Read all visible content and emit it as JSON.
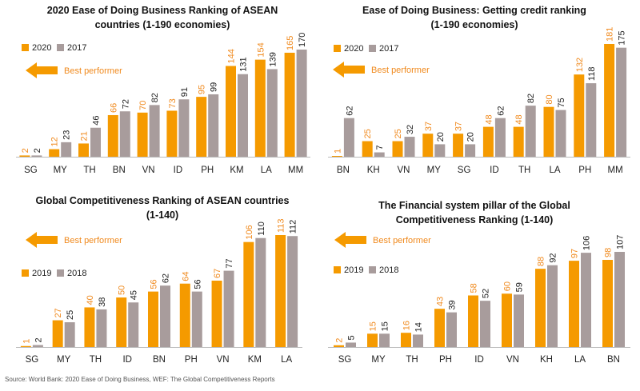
{
  "colors": {
    "primary": "#F59A00",
    "secondary": "#A89C9C",
    "label_primary": "#F08A1E",
    "axis": "#BBBBBB"
  },
  "best_performer_label": "Best performer",
  "source": "Source: World Bank: 2020 Ease of Doing Business, WEF: The Global Competitiveness Reports",
  "chart_data": [
    {
      "type": "bar",
      "title": [
        "2020 Ease of Doing Business Ranking of ASEAN",
        "countries (1-190 economies)"
      ],
      "categories": [
        "SG",
        "MY",
        "TH",
        "BN",
        "VN",
        "ID",
        "PH",
        "KM",
        "LA",
        "MM"
      ],
      "series": [
        {
          "name": "2020",
          "values": [
            2,
            12,
            21,
            66,
            70,
            73,
            95,
            144,
            154,
            165
          ]
        },
        {
          "name": "2017",
          "values": [
            2,
            23,
            46,
            72,
            82,
            91,
            99,
            131,
            139,
            170
          ]
        }
      ],
      "ylim": [
        0,
        170
      ],
      "legend": "top-left",
      "annotation": "Best performer"
    },
    {
      "type": "bar",
      "title": [
        "Ease of Doing Business: Getting credit ranking",
        "(1-190 economies)"
      ],
      "categories": [
        "BN",
        "KH",
        "VN",
        "MY",
        "SG",
        "ID",
        "TH",
        "LA",
        "PH",
        "MM"
      ],
      "series": [
        {
          "name": "2020",
          "values": [
            1,
            25,
            25,
            37,
            37,
            48,
            48,
            80,
            132,
            181
          ]
        },
        {
          "name": "2017",
          "values": [
            62,
            7,
            32,
            20,
            20,
            62,
            82,
            75,
            118,
            175
          ]
        }
      ],
      "ylim": [
        0,
        181
      ],
      "legend": "top-left",
      "annotation": "Best performer"
    },
    {
      "type": "bar",
      "title": [
        "Global Competitiveness Ranking of ASEAN countries",
        "(1-140)"
      ],
      "categories": [
        "SG",
        "MY",
        "TH",
        "ID",
        "BN",
        "PH",
        "VN",
        "KM",
        "LA"
      ],
      "series": [
        {
          "name": "2019",
          "values": [
            1,
            27,
            40,
            50,
            56,
            64,
            67,
            106,
            113
          ]
        },
        {
          "name": "2018",
          "values": [
            2,
            25,
            38,
            45,
            62,
            56,
            77,
            110,
            112
          ]
        }
      ],
      "ylim": [
        0,
        113
      ],
      "legend": "top-left",
      "annotation": "Best performer"
    },
    {
      "type": "bar",
      "title": [
        "The Financial system pillar of the Global",
        "Competitiveness Ranking (1-140)"
      ],
      "categories": [
        "SG",
        "MY",
        "TH",
        "PH",
        "ID",
        "VN",
        "KH",
        "LA",
        "BN"
      ],
      "series": [
        {
          "name": "2019",
          "values": [
            2,
            15,
            16,
            43,
            58,
            60,
            88,
            97,
            98
          ]
        },
        {
          "name": "2018",
          "values": [
            5,
            15,
            14,
            39,
            52,
            59,
            92,
            106,
            107
          ]
        }
      ],
      "ylim": [
        0,
        107
      ],
      "legend": "top-left",
      "annotation": "Best performer"
    }
  ]
}
